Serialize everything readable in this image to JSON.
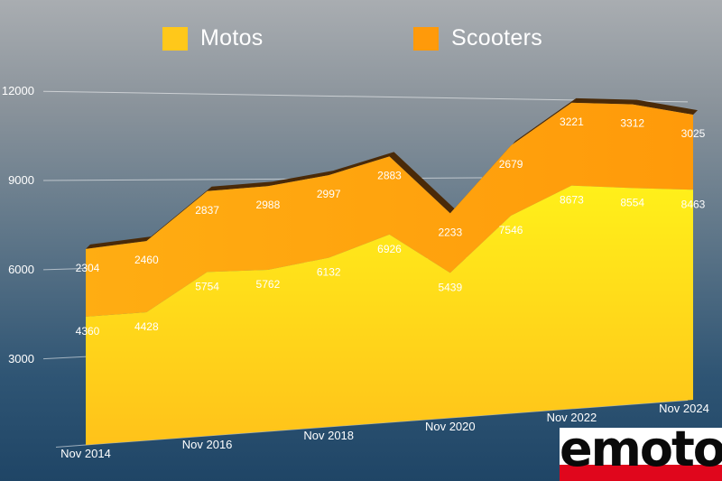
{
  "chart_data": {
    "type": "area",
    "stacked": true,
    "x": [
      "Nov 2014",
      "Nov 2015",
      "Nov 2016",
      "Nov 2017",
      "Nov 2018",
      "Nov 2019",
      "Nov 2020",
      "Nov 2021",
      "Nov 2022",
      "Nov 2023",
      "Nov 2024"
    ],
    "x_tick_labels": [
      "Nov 2014",
      "Nov 2016",
      "Nov 2018",
      "Nov 2020",
      "Nov 2022",
      "Nov 2024"
    ],
    "series": [
      {
        "name": "Motos",
        "color": "#ffd21f",
        "values": [
          4360,
          4428,
          5754,
          5762,
          6132,
          6926,
          5439,
          7546,
          8673,
          8554,
          8463
        ]
      },
      {
        "name": "Scooters",
        "color": "#ffa00d",
        "values": [
          2304,
          2460,
          2837,
          2988,
          2997,
          2883,
          2233,
          2679,
          3221,
          3312,
          3025
        ]
      }
    ],
    "y_ticks": [
      "3000",
      "6000",
      "9000",
      "12000"
    ],
    "ylim": [
      0,
      12000
    ],
    "legend_position": "top",
    "grid": true,
    "title": "",
    "xlabel": "",
    "ylabel": ""
  },
  "logo": {
    "text": "emoto"
  }
}
